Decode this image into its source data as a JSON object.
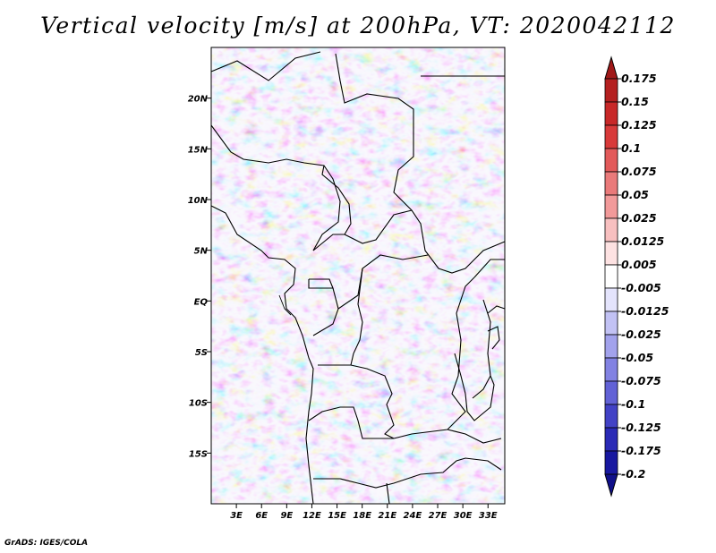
{
  "title": "Vertical velocity [m/s] at 200hPa, VT: 2020042112",
  "credit": "GrADS: IGES/COLA",
  "chart_data": {
    "type": "heatmap",
    "title": "Vertical velocity [m/s] at 200hPa, VT: 2020042112",
    "variable": "Vertical velocity",
    "units": "m/s",
    "level": "200hPa",
    "valid_time": "2020042112",
    "xlabel": "",
    "ylabel": "",
    "xlim": [
      0,
      35
    ],
    "ylim": [
      -20,
      25
    ],
    "x_ticks": [
      {
        "value": 3,
        "label": "3E"
      },
      {
        "value": 6,
        "label": "6E"
      },
      {
        "value": 9,
        "label": "9E"
      },
      {
        "value": 12,
        "label": "12E"
      },
      {
        "value": 15,
        "label": "15E"
      },
      {
        "value": 18,
        "label": "18E"
      },
      {
        "value": 21,
        "label": "21E"
      },
      {
        "value": 24,
        "label": "24E"
      },
      {
        "value": 27,
        "label": "27E"
      },
      {
        "value": 30,
        "label": "30E"
      },
      {
        "value": 33,
        "label": "33E"
      }
    ],
    "y_ticks": [
      {
        "value": 20,
        "label": "20N"
      },
      {
        "value": 15,
        "label": "15N"
      },
      {
        "value": 10,
        "label": "10N"
      },
      {
        "value": 5,
        "label": "5N"
      },
      {
        "value": 0,
        "label": "EQ"
      },
      {
        "value": -5,
        "label": "5S"
      },
      {
        "value": -10,
        "label": "10S"
      },
      {
        "value": -15,
        "label": "15S"
      }
    ],
    "colorbar": {
      "labels": [
        "0.175",
        "0.15",
        "0.125",
        "0.1",
        "0.075",
        "0.05",
        "0.025",
        "0.0125",
        "0.005",
        "-0.005",
        "-0.0125",
        "-0.025",
        "-0.05",
        "-0.075",
        "-0.1",
        "-0.125",
        "-0.175",
        "-0.2"
      ],
      "colors": [
        "#a01818",
        "#b42020",
        "#c82828",
        "#d83a3a",
        "#e25a5a",
        "#ea7a7a",
        "#f29a9a",
        "#f8c0c0",
        "#fde2e2",
        "#ffffff",
        "#e4e4fc",
        "#c2c2f4",
        "#a2a2ec",
        "#8282e2",
        "#6262d6",
        "#4242c6",
        "#2a2ab6",
        "#1818a0",
        "#10108a"
      ],
      "extends": "both"
    }
  }
}
